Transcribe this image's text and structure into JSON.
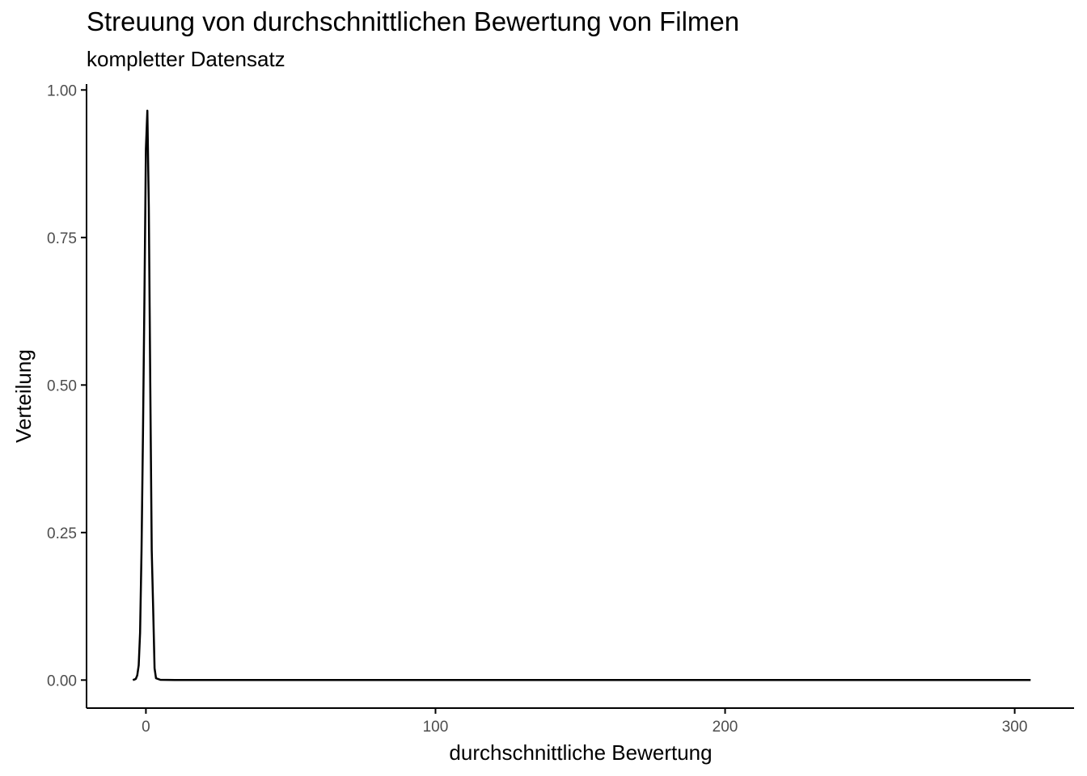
{
  "chart_data": {
    "type": "line",
    "title": "Streuung von durchschnittlichen Bewertung von Filmen",
    "subtitle": "kompletter Datensatz",
    "xlabel": "durchschnittliche Bewertung",
    "ylabel": "Verteilung",
    "xlim": [
      -20.5,
      320.5
    ],
    "ylim": [
      -0.0475,
      1.01
    ],
    "x_ticks": [
      0,
      100,
      200,
      300
    ],
    "x_tick_labels": [
      "0",
      "100",
      "200",
      "300"
    ],
    "y_ticks": [
      0,
      0.25,
      0.5,
      0.75,
      1
    ],
    "y_tick_labels": [
      "0.00",
      "0.25",
      "0.50",
      "0.75",
      "1.00"
    ],
    "grid": false,
    "line_color": "#000000",
    "series": [
      {
        "x": [
          -4.5,
          -3.5,
          -3.0,
          -2.5,
          -2.0,
          -1.5,
          -1.0,
          -0.5,
          0.0,
          0.5,
          1.0,
          1.5,
          2.0,
          2.5,
          3.0,
          3.5,
          5.0,
          10.0,
          50.0,
          100.0,
          150.0,
          200.0,
          250.0,
          300.0,
          305.5
        ],
        "y": [
          0.0,
          0.002,
          0.008,
          0.025,
          0.08,
          0.22,
          0.42,
          0.65,
          0.9,
          0.965,
          0.8,
          0.5,
          0.22,
          0.12,
          0.02,
          0.003,
          0.0005,
          0.0,
          0.0,
          0.0,
          0.0,
          0.0,
          0.0,
          0.0,
          0.0
        ]
      }
    ]
  }
}
